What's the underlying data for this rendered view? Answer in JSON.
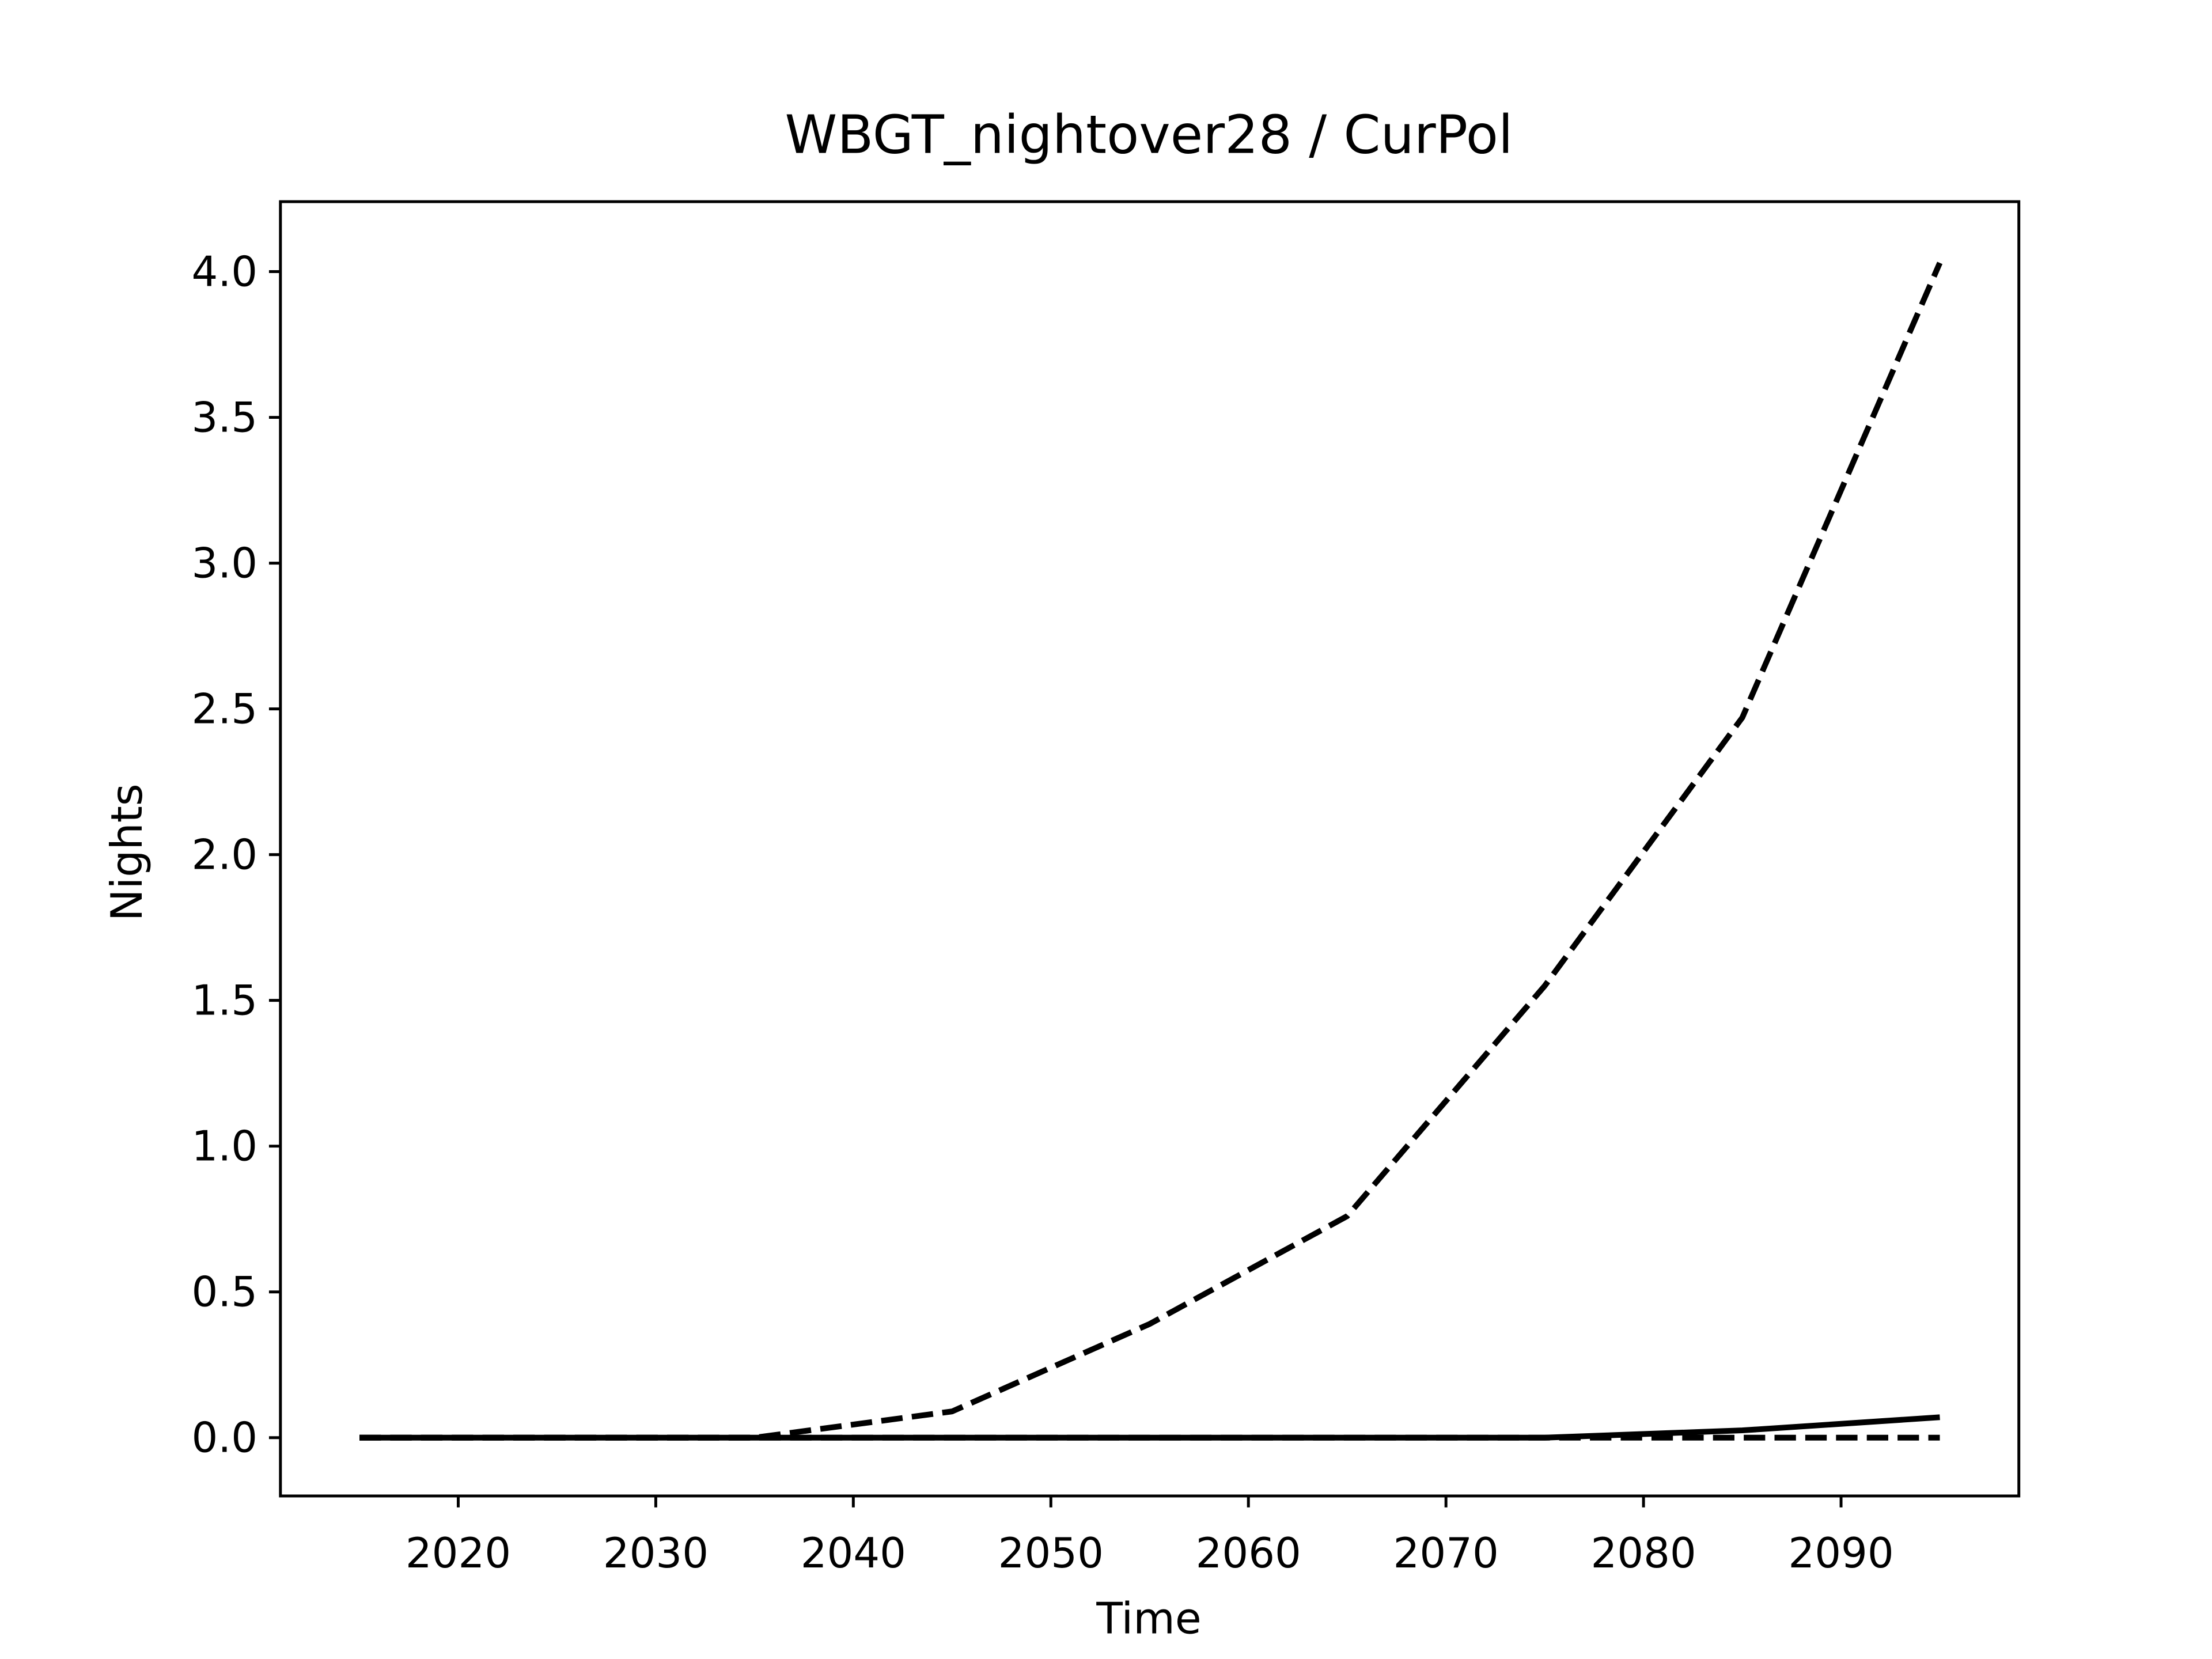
{
  "chart_data": {
    "type": "line",
    "title": "WBGT_nightover28 / CurPol",
    "x_label": "Time",
    "y_label": "Nights",
    "x": [
      2015,
      2025,
      2035,
      2045,
      2055,
      2065,
      2075,
      2085,
      2095
    ],
    "series": [
      {
        "color": "#000000",
        "linestyle": "dashed",
        "values": [
          0,
          0,
          0,
          0.09,
          0.39,
          0.76,
          1.55,
          2.47,
          4.03
        ]
      },
      {
        "color": "#000000",
        "linestyle": "solid",
        "values": [
          0,
          0,
          0,
          0,
          0,
          0,
          0,
          0.025,
          0.07
        ]
      },
      {
        "color": "#000000",
        "linestyle": "dashed",
        "values": [
          0,
          0,
          0,
          0,
          0,
          0,
          0,
          0,
          0
        ]
      }
    ],
    "xlim": [
      2011,
      2099
    ],
    "ylim": [
      -0.2,
      4.24
    ],
    "xticks": [
      2020,
      2030,
      2040,
      2050,
      2060,
      2070,
      2080,
      2090
    ],
    "yticks": [
      {
        "value": 0,
        "label": "0.0"
      },
      {
        "value": 0.5,
        "label": "0.5"
      },
      {
        "value": 1,
        "label": "1.0"
      },
      {
        "value": 1.5,
        "label": "1.5"
      },
      {
        "value": 2,
        "label": "2.0"
      },
      {
        "value": 2.5,
        "label": "2.5"
      },
      {
        "value": 3,
        "label": "3.0"
      },
      {
        "value": 3.5,
        "label": "3.5"
      },
      {
        "value": 4,
        "label": "4.0"
      }
    ],
    "grid": false
  }
}
